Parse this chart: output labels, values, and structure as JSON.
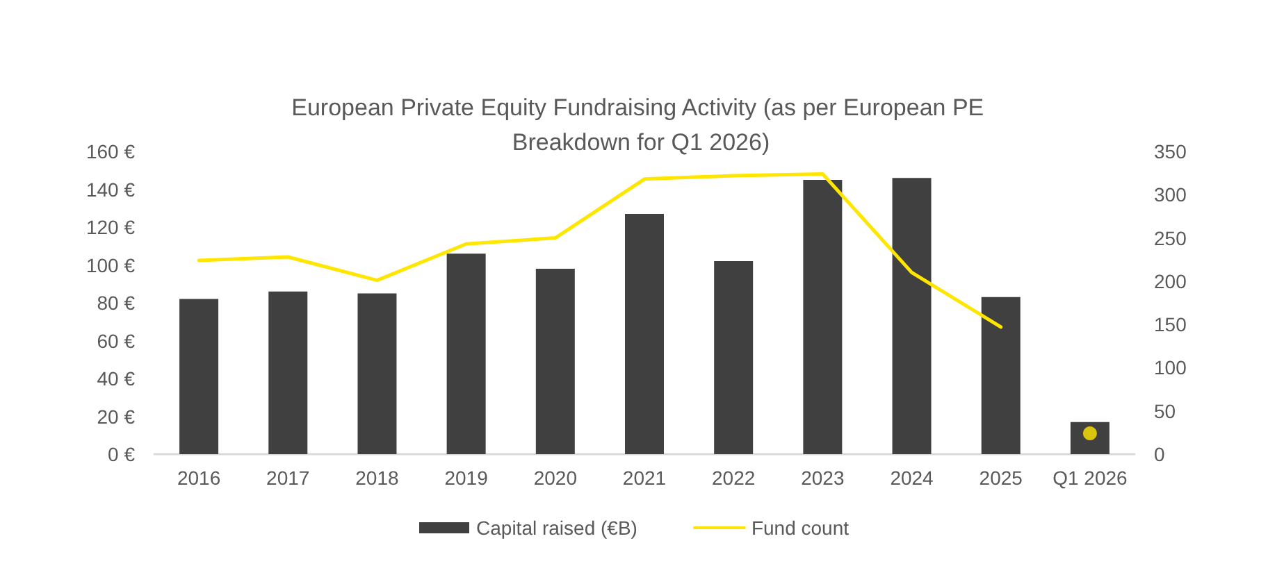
{
  "chart_data": {
    "type": "bar",
    "title": "European Private Equity Fundraising Activity (as per European PE Breakdown for Q1 2026)",
    "categories": [
      "2016",
      "2017",
      "2018",
      "2019",
      "2020",
      "2021",
      "2022",
      "2023",
      "2024",
      "2025",
      "Q1 2026"
    ],
    "series": [
      {
        "name": "Capital raised (€B)",
        "color": "#404040",
        "values": [
          82,
          86,
          85,
          106,
          98,
          127,
          102,
          145,
          146,
          83,
          17
        ]
      },
      {
        "name": "Fund count",
        "type": "line",
        "axis": "y2",
        "color": "#ffe600",
        "marker": "none",
        "values": [
          224,
          228,
          201,
          243,
          250,
          318,
          322,
          324,
          210,
          147,
          null
        ]
      },
      {
        "type": "scatter",
        "axis": "y2",
        "color": "#ffe600",
        "marker": "circle",
        "x": [
          "Q1 2026"
        ],
        "values": [
          24
        ]
      }
    ],
    "ylim": [
      0,
      160
    ],
    "yticks": [
      {
        "value": 0,
        "label": "0 €"
      },
      {
        "value": 20,
        "label": "20 €"
      },
      {
        "value": 40,
        "label": "40 €"
      },
      {
        "value": 60,
        "label": "60 €"
      },
      {
        "value": 80,
        "label": "80 €"
      },
      {
        "value": 100,
        "label": "100 €"
      },
      {
        "value": 120,
        "label": "120 €"
      },
      {
        "value": 140,
        "label": "140 €"
      },
      {
        "value": 160,
        "label": "160 €"
      }
    ],
    "y2lim": [
      0,
      350
    ],
    "y2ticks": [
      0,
      50,
      100,
      150,
      200,
      250,
      300,
      350
    ],
    "legend": "bottom"
  }
}
